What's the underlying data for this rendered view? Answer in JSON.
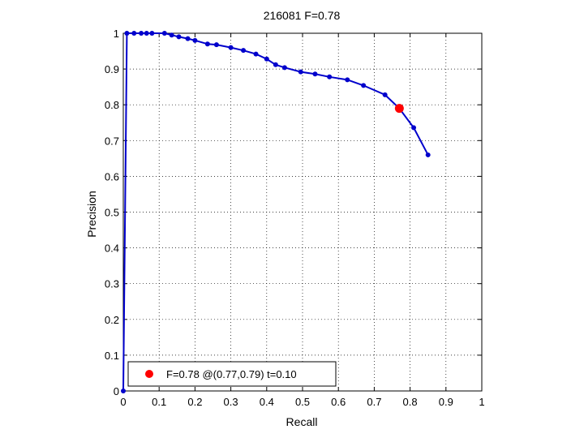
{
  "chart_data": {
    "type": "line",
    "title": "216081 F=0.78",
    "xlabel": "Recall",
    "ylabel": "Precision",
    "xlim": [
      0,
      1
    ],
    "ylim": [
      0,
      1
    ],
    "xticks": [
      0,
      0.1,
      0.2,
      0.3,
      0.4,
      0.5,
      0.6,
      0.7,
      0.8,
      0.9,
      1
    ],
    "yticks": [
      0,
      0.1,
      0.2,
      0.3,
      0.4,
      0.5,
      0.6,
      0.7,
      0.8,
      0.9,
      1
    ],
    "xtick_labels": [
      "0",
      "0.1",
      "0.2",
      "0.3",
      "0.4",
      "0.5",
      "0.6",
      "0.7",
      "0.8",
      "0.9",
      "1"
    ],
    "ytick_labels": [
      "0",
      "0.1",
      "0.2",
      "0.3",
      "0.4",
      "0.5",
      "0.6",
      "0.7",
      "0.8",
      "0.9",
      "1"
    ],
    "grid": true,
    "legend_position": "bottom-left",
    "series": [
      {
        "color": "#0000cc",
        "x": [
          0.0,
          0.01,
          0.03,
          0.05,
          0.065,
          0.08,
          0.115,
          0.135,
          0.155,
          0.18,
          0.2,
          0.235,
          0.26,
          0.3,
          0.335,
          0.37,
          0.4,
          0.425,
          0.45,
          0.495,
          0.535,
          0.575,
          0.625,
          0.67,
          0.73,
          0.77,
          0.81,
          0.85
        ],
        "y": [
          0.0,
          1.0,
          1.0,
          1.0,
          1.0,
          1.0,
          1.0,
          0.995,
          0.99,
          0.985,
          0.98,
          0.97,
          0.968,
          0.96,
          0.952,
          0.942,
          0.928,
          0.912,
          0.904,
          0.892,
          0.886,
          0.878,
          0.87,
          0.854,
          0.828,
          0.79,
          0.736,
          0.66
        ]
      }
    ],
    "highlight": {
      "x": 0.77,
      "y": 0.79,
      "color": "#ff0000"
    },
    "legend": {
      "label": "F=0.78 @(0.77,0.79) t=0.10"
    }
  }
}
